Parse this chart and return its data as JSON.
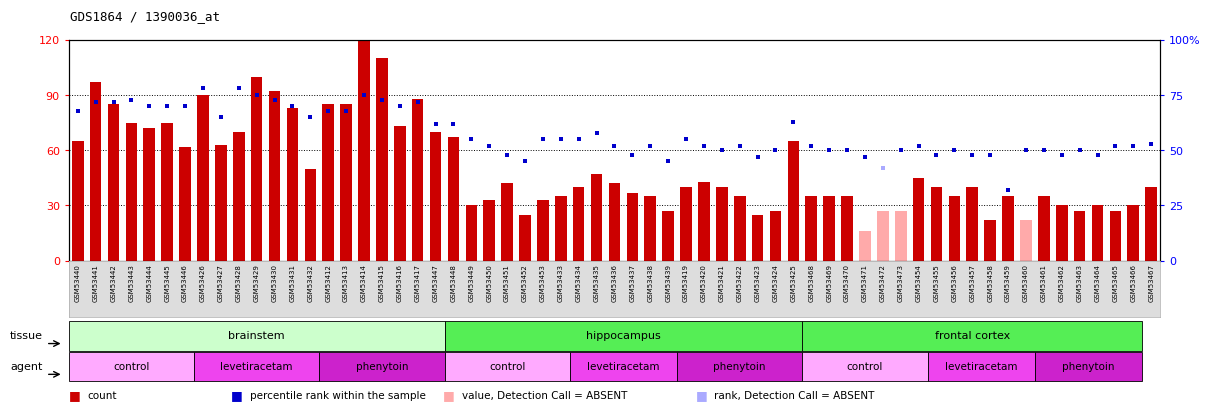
{
  "title": "GDS1864 / 1390036_at",
  "samples": [
    "GSM53440",
    "GSM53441",
    "GSM53442",
    "GSM53443",
    "GSM53444",
    "GSM53445",
    "GSM53446",
    "GSM53426",
    "GSM53427",
    "GSM53428",
    "GSM53429",
    "GSM53430",
    "GSM53431",
    "GSM53432",
    "GSM53412",
    "GSM53413",
    "GSM53414",
    "GSM53415",
    "GSM53416",
    "GSM53417",
    "GSM53447",
    "GSM53448",
    "GSM53449",
    "GSM53450",
    "GSM53451",
    "GSM53452",
    "GSM53453",
    "GSM53433",
    "GSM53434",
    "GSM53435",
    "GSM53436",
    "GSM53437",
    "GSM53438",
    "GSM53439",
    "GSM53419",
    "GSM53420",
    "GSM53421",
    "GSM53422",
    "GSM53423",
    "GSM53424",
    "GSM53425",
    "GSM53468",
    "GSM53469",
    "GSM53470",
    "GSM53471",
    "GSM53472",
    "GSM53473",
    "GSM53454",
    "GSM53455",
    "GSM53456",
    "GSM53457",
    "GSM53458",
    "GSM53459",
    "GSM53460",
    "GSM53461",
    "GSM53462",
    "GSM53463",
    "GSM53464",
    "GSM53465",
    "GSM53466",
    "GSM53467"
  ],
  "bar_values": [
    65,
    97,
    85,
    75,
    72,
    75,
    62,
    90,
    63,
    70,
    100,
    92,
    83,
    50,
    85,
    85,
    120,
    110,
    73,
    88,
    70,
    67,
    30,
    33,
    42,
    25,
    33,
    35,
    40,
    47,
    42,
    37,
    35,
    27,
    40,
    43,
    40,
    35,
    25,
    27,
    65,
    35,
    35,
    35,
    16,
    27,
    27,
    45,
    40,
    35,
    40,
    22,
    35,
    22,
    35,
    30,
    27,
    30,
    27,
    30,
    40
  ],
  "bar_absent": [
    false,
    false,
    false,
    false,
    false,
    false,
    false,
    false,
    false,
    false,
    false,
    false,
    false,
    false,
    false,
    false,
    false,
    false,
    false,
    false,
    false,
    false,
    false,
    false,
    false,
    false,
    false,
    false,
    false,
    false,
    false,
    false,
    false,
    false,
    false,
    false,
    false,
    false,
    false,
    false,
    false,
    false,
    false,
    false,
    true,
    true,
    true,
    false,
    false,
    false,
    false,
    false,
    false,
    true,
    false,
    false,
    false,
    false,
    false,
    false,
    false
  ],
  "dot_values": [
    68,
    72,
    72,
    73,
    70,
    70,
    70,
    78,
    65,
    78,
    75,
    73,
    70,
    65,
    68,
    68,
    75,
    73,
    70,
    72,
    62,
    62,
    55,
    52,
    48,
    45,
    55,
    55,
    55,
    58,
    52,
    48,
    52,
    45,
    55,
    52,
    50,
    52,
    47,
    50,
    63,
    52,
    50,
    50,
    47,
    42,
    50,
    52,
    48,
    50,
    48,
    48,
    32,
    50,
    50,
    48,
    50,
    48,
    52,
    52,
    53
  ],
  "dot_absent": [
    false,
    false,
    false,
    false,
    false,
    false,
    false,
    false,
    false,
    false,
    false,
    false,
    false,
    false,
    false,
    false,
    false,
    false,
    false,
    false,
    false,
    false,
    false,
    false,
    false,
    false,
    false,
    false,
    false,
    false,
    false,
    false,
    false,
    false,
    false,
    false,
    false,
    false,
    false,
    false,
    false,
    false,
    false,
    false,
    false,
    true,
    false,
    false,
    false,
    false,
    false,
    false,
    false,
    false,
    false,
    false,
    false,
    false,
    false,
    false,
    false
  ],
  "tissue_groups": [
    {
      "label": "brainstem",
      "start": 0,
      "end": 21,
      "color": "#ccffcc"
    },
    {
      "label": "hippocampus",
      "start": 21,
      "end": 41,
      "color": "#55dd55"
    },
    {
      "label": "frontal cortex",
      "start": 41,
      "end": 60,
      "color": "#55dd55"
    }
  ],
  "agent_groups": [
    {
      "label": "control",
      "start": 0,
      "end": 7,
      "color": "#ffaaff"
    },
    {
      "label": "levetiracetam",
      "start": 7,
      "end": 14,
      "color": "#ee44ee"
    },
    {
      "label": "phenytoin",
      "start": 14,
      "end": 21,
      "color": "#cc22cc"
    },
    {
      "label": "control",
      "start": 21,
      "end": 28,
      "color": "#ffaaff"
    },
    {
      "label": "levetiracetam",
      "start": 28,
      "end": 34,
      "color": "#ee44ee"
    },
    {
      "label": "phenytoin",
      "start": 34,
      "end": 41,
      "color": "#cc22cc"
    },
    {
      "label": "control",
      "start": 41,
      "end": 48,
      "color": "#ffaaff"
    },
    {
      "label": "levetiracetam",
      "start": 48,
      "end": 54,
      "color": "#ee44ee"
    },
    {
      "label": "phenytoin",
      "start": 54,
      "end": 60,
      "color": "#cc22cc"
    }
  ],
  "yticks_left": [
    0,
    30,
    60,
    90,
    120
  ],
  "yticks_right": [
    0,
    25,
    50,
    75,
    100
  ],
  "bar_color": "#cc0000",
  "bar_absent_color": "#ffaaaa",
  "dot_color": "#0000cc",
  "dot_absent_color": "#aaaaff",
  "legend_items": [
    {
      "label": "count",
      "color": "#cc0000"
    },
    {
      "label": "percentile rank within the sample",
      "color": "#0000cc"
    },
    {
      "label": "value, Detection Call = ABSENT",
      "color": "#ffaaaa"
    },
    {
      "label": "rank, Detection Call = ABSENT",
      "color": "#aaaaff"
    }
  ]
}
